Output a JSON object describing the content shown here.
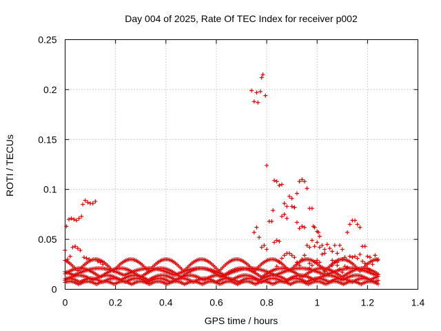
{
  "chart_data": {
    "type": "scatter",
    "title": "Day 004 of 2025, Rate Of TEC Index for receiver p002",
    "xlabel": "GPS time / hours",
    "ylabel": "ROTI / TECUs",
    "xlim": [
      0,
      1.4
    ],
    "ylim": [
      0,
      0.25
    ],
    "x_ticks": [
      0,
      0.2,
      0.4,
      0.6,
      0.8,
      1,
      1.2,
      1.4
    ],
    "x_tick_labels": [
      "0",
      "0.2",
      "0.4",
      "0.6",
      "0.8",
      "1",
      "1.2",
      "1.4"
    ],
    "y_ticks": [
      0,
      0.05,
      0.1,
      0.15,
      0.2,
      0.25
    ],
    "y_tick_labels": [
      "0",
      "0.05",
      "0.1",
      "0.15",
      "0.2",
      "0.25"
    ],
    "grid": true,
    "marker": "+",
    "color": "#e00000",
    "series": [
      {
        "name": "ROTI",
        "points": [
          [
            0.0,
            0.039
          ],
          [
            0.005,
            0.063
          ],
          [
            0.015,
            0.07
          ],
          [
            0.025,
            0.071
          ],
          [
            0.035,
            0.07
          ],
          [
            0.045,
            0.069
          ],
          [
            0.055,
            0.071
          ],
          [
            0.065,
            0.073
          ],
          [
            0.07,
            0.085
          ],
          [
            0.08,
            0.089
          ],
          [
            0.09,
            0.087
          ],
          [
            0.1,
            0.086
          ],
          [
            0.11,
            0.086
          ],
          [
            0.12,
            0.088
          ],
          [
            0.03,
            0.042
          ],
          [
            0.04,
            0.043
          ],
          [
            0.05,
            0.041
          ],
          [
            0.06,
            0.039
          ],
          [
            0.01,
            0.03
          ],
          [
            0.02,
            0.033
          ],
          [
            0.075,
            0.032
          ],
          [
            0.085,
            0.031
          ],
          [
            0.095,
            0.03
          ],
          [
            0.13,
            0.028
          ],
          [
            0.14,
            0.027
          ],
          [
            0.15,
            0.025
          ],
          [
            0.74,
            0.199
          ],
          [
            0.75,
            0.188
          ],
          [
            0.76,
            0.197
          ],
          [
            0.765,
            0.187
          ],
          [
            0.775,
            0.198
          ],
          [
            0.78,
            0.212
          ],
          [
            0.785,
            0.215
          ],
          [
            0.795,
            0.194
          ],
          [
            0.8,
            0.124
          ],
          [
            0.75,
            0.057
          ],
          [
            0.76,
            0.062
          ],
          [
            0.77,
            0.052
          ],
          [
            0.78,
            0.042
          ],
          [
            0.79,
            0.044
          ],
          [
            0.8,
            0.04
          ],
          [
            0.81,
            0.068
          ],
          [
            0.82,
            0.068
          ],
          [
            0.825,
            0.079
          ],
          [
            0.83,
            0.047
          ],
          [
            0.84,
            0.049
          ],
          [
            0.85,
            0.048
          ],
          [
            0.83,
            0.109
          ],
          [
            0.84,
            0.108
          ],
          [
            0.85,
            0.104
          ],
          [
            0.86,
            0.105
          ],
          [
            0.87,
            0.086
          ],
          [
            0.88,
            0.083
          ],
          [
            0.89,
            0.093
          ],
          [
            0.9,
            0.091
          ],
          [
            0.91,
            0.082
          ],
          [
            0.92,
            0.096
          ],
          [
            0.93,
            0.108
          ],
          [
            0.94,
            0.11
          ],
          [
            0.95,
            0.108
          ],
          [
            0.96,
            0.101
          ],
          [
            0.86,
            0.073
          ],
          [
            0.87,
            0.075
          ],
          [
            0.88,
            0.071
          ],
          [
            0.9,
            0.083
          ],
          [
            0.91,
            0.082
          ],
          [
            0.92,
            0.067
          ],
          [
            0.93,
            0.061
          ],
          [
            0.94,
            0.063
          ],
          [
            0.95,
            0.062
          ],
          [
            0.97,
            0.081
          ],
          [
            0.98,
            0.081
          ],
          [
            0.985,
            0.063
          ],
          [
            0.99,
            0.062
          ],
          [
            1.0,
            0.058
          ],
          [
            1.005,
            0.057
          ],
          [
            1.01,
            0.053
          ],
          [
            1.02,
            0.044
          ],
          [
            1.03,
            0.04
          ],
          [
            1.04,
            0.045
          ],
          [
            1.05,
            0.041
          ],
          [
            1.06,
            0.038
          ],
          [
            0.96,
            0.044
          ],
          [
            0.97,
            0.042
          ],
          [
            0.98,
            0.049
          ],
          [
            0.99,
            0.043
          ],
          [
            1.0,
            0.047
          ],
          [
            1.01,
            0.042
          ],
          [
            1.02,
            0.035
          ],
          [
            1.03,
            0.036
          ],
          [
            1.07,
            0.044
          ],
          [
            1.08,
            0.036
          ],
          [
            1.09,
            0.044
          ],
          [
            1.1,
            0.04
          ],
          [
            1.11,
            0.032
          ],
          [
            1.12,
            0.057
          ],
          [
            1.13,
            0.065
          ],
          [
            1.14,
            0.069
          ],
          [
            1.15,
            0.069
          ],
          [
            1.16,
            0.065
          ],
          [
            1.17,
            0.062
          ],
          [
            1.18,
            0.043
          ],
          [
            1.19,
            0.043
          ],
          [
            1.06,
            0.029
          ],
          [
            1.08,
            0.027
          ],
          [
            1.1,
            0.03
          ],
          [
            1.11,
            0.023
          ],
          [
            1.12,
            0.022
          ],
          [
            1.13,
            0.033
          ],
          [
            1.14,
            0.032
          ],
          [
            1.15,
            0.033
          ],
          [
            1.16,
            0.031
          ],
          [
            1.17,
            0.035
          ],
          [
            1.18,
            0.028
          ],
          [
            1.19,
            0.026
          ],
          [
            1.2,
            0.033
          ],
          [
            1.21,
            0.032
          ],
          [
            1.22,
            0.025
          ],
          [
            1.23,
            0.034
          ],
          [
            1.24,
            0.029
          ],
          [
            1.2,
            0.021
          ],
          [
            1.21,
            0.019
          ],
          [
            0.84,
            0.023
          ],
          [
            0.85,
            0.027
          ],
          [
            0.86,
            0.031
          ],
          [
            0.87,
            0.034
          ],
          [
            0.88,
            0.036
          ],
          [
            0.89,
            0.036
          ],
          [
            0.9,
            0.034
          ],
          [
            0.91,
            0.032
          ],
          [
            0.92,
            0.027
          ],
          [
            0.93,
            0.024
          ],
          [
            0.94,
            0.03
          ],
          [
            0.95,
            0.034
          ],
          [
            0.96,
            0.03
          ],
          [
            0.97,
            0.026
          ],
          [
            0.97,
            0.021
          ],
          [
            0.98,
            0.024
          ],
          [
            0.99,
            0.027
          ],
          [
            1.0,
            0.029
          ],
          [
            1.01,
            0.027
          ],
          [
            1.02,
            0.022
          ],
          [
            1.03,
            0.018
          ],
          [
            1.04,
            0.016
          ],
          [
            1.05,
            0.019
          ],
          [
            1.06,
            0.024
          ],
          [
            1.07,
            0.027
          ],
          [
            1.08,
            0.024
          ],
          [
            1.09,
            0.02
          ],
          [
            1.1,
            0.017
          ],
          [
            1.11,
            0.014
          ]
        ]
      }
    ]
  }
}
